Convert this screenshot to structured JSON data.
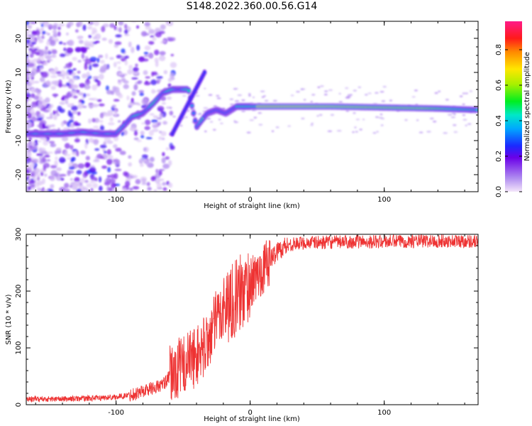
{
  "title": "S148.2022.360.00.56.G14",
  "chart_data": [
    {
      "type": "heatmap",
      "xlabel": "Height of straight line (km)",
      "ylabel": "Frequency (Hz)",
      "xlim": [
        -167,
        170
      ],
      "ylim": [
        -25,
        25
      ],
      "x_ticks": [
        -100,
        0,
        100
      ],
      "y_ticks": [
        -20,
        -10,
        0,
        10,
        20
      ],
      "colorbar": {
        "label": "Normalized spectral amplitude",
        "range": [
          0.0,
          0.96
        ],
        "ticks": [
          "0.0",
          "0.2",
          "0.4",
          "0.6",
          "0.8"
        ]
      },
      "ridge": {
        "x": [
          -167,
          -150,
          -140,
          -125,
          -110,
          -100,
          -95,
          -88,
          -80,
          -72,
          -65,
          -58,
          -52,
          -46,
          -40,
          -32,
          -25,
          -18,
          -10,
          0,
          20,
          60,
          100,
          140,
          170
        ],
        "y": [
          -8,
          -8,
          -8,
          -7.5,
          -8,
          -8,
          -6,
          -3,
          -2,
          1,
          4,
          5,
          5,
          5,
          -6,
          -2,
          -1,
          -2,
          0,
          0,
          0,
          0,
          -0.3,
          -0.6,
          -1
        ],
        "peak_amplitude_near_x": [
          0,
          100
        ]
      }
    },
    {
      "type": "line",
      "xlabel": "Height of straight line (km)",
      "ylabel": "SNR (10 * v/v)",
      "xlim": [
        -167,
        170
      ],
      "ylim": [
        0,
        300
      ],
      "x_ticks": [
        -100,
        0,
        100
      ],
      "y_ticks": [
        0,
        100,
        200,
        300
      ],
      "color": "#ee3333",
      "series": [
        {
          "x": [
            -167,
            -140,
            -110,
            -95,
            -85,
            -75,
            -65,
            -58,
            -50,
            -45,
            -40,
            -35,
            -30,
            -25,
            -20,
            -15,
            -10,
            -5,
            0,
            5,
            10,
            15,
            20,
            25,
            30,
            40,
            60,
            80,
            100,
            120,
            140,
            160,
            170
          ],
          "y": [
            10,
            10,
            12,
            15,
            20,
            28,
            35,
            55,
            70,
            80,
            85,
            100,
            120,
            150,
            170,
            180,
            190,
            200,
            215,
            225,
            240,
            255,
            270,
            278,
            282,
            285,
            286,
            287,
            287,
            288,
            288,
            288,
            288
          ]
        }
      ]
    }
  ]
}
